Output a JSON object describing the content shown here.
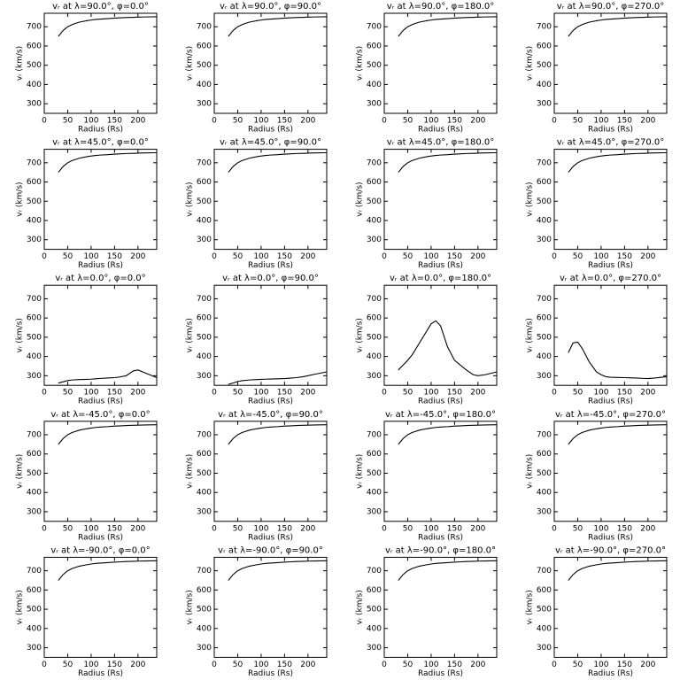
{
  "chart_data": [
    {
      "type": "line",
      "title": "vᵣ at λ=90.0°, φ=0.0°",
      "xlabel": "Radius (Rs)",
      "ylabel": "vᵣ (km/s)",
      "color": "#000000",
      "x": [
        30,
        40,
        50,
        60,
        75,
        90,
        100,
        110,
        120,
        135,
        150,
        160,
        175,
        190,
        200,
        215,
        240
      ],
      "values": [
        650,
        680,
        700,
        712,
        724,
        731,
        735,
        738,
        740,
        742,
        745,
        746,
        748,
        749,
        750,
        751,
        752
      ],
      "xlim": [
        0,
        240
      ],
      "ylim": [
        250,
        770
      ],
      "xticks": [
        0,
        50,
        100,
        150,
        200
      ],
      "yticks": [
        300,
        400,
        500,
        600,
        700
      ]
    },
    {
      "type": "line",
      "title": "vᵣ at λ=90.0°, φ=90.0°",
      "xlabel": "Radius (Rs)",
      "ylabel": "vᵣ (km/s)",
      "color": "#000000",
      "x": [
        30,
        40,
        50,
        60,
        75,
        90,
        100,
        110,
        120,
        135,
        150,
        160,
        175,
        190,
        200,
        215,
        240
      ],
      "values": [
        650,
        680,
        700,
        712,
        724,
        731,
        735,
        738,
        740,
        742,
        745,
        746,
        748,
        749,
        750,
        751,
        752
      ],
      "xlim": [
        0,
        240
      ],
      "ylim": [
        250,
        770
      ],
      "xticks": [
        0,
        50,
        100,
        150,
        200
      ],
      "yticks": [
        300,
        400,
        500,
        600,
        700
      ]
    },
    {
      "type": "line",
      "title": "vᵣ at λ=90.0°, φ=180.0°",
      "xlabel": "Radius (Rs)",
      "ylabel": "vᵣ (km/s)",
      "color": "#000000",
      "x": [
        30,
        40,
        50,
        60,
        75,
        90,
        100,
        110,
        120,
        135,
        150,
        160,
        175,
        190,
        200,
        215,
        240
      ],
      "values": [
        650,
        680,
        700,
        712,
        724,
        731,
        735,
        738,
        740,
        742,
        745,
        746,
        748,
        749,
        750,
        751,
        752
      ],
      "xlim": [
        0,
        240
      ],
      "ylim": [
        250,
        770
      ],
      "xticks": [
        0,
        50,
        100,
        150,
        200
      ],
      "yticks": [
        300,
        400,
        500,
        600,
        700
      ]
    },
    {
      "type": "line",
      "title": "vᵣ at λ=90.0°, φ=270.0°",
      "xlabel": "Radius (Rs)",
      "ylabel": "vᵣ (km/s)",
      "color": "#000000",
      "x": [
        30,
        40,
        50,
        60,
        75,
        90,
        100,
        110,
        120,
        135,
        150,
        160,
        175,
        190,
        200,
        215,
        240
      ],
      "values": [
        650,
        680,
        700,
        712,
        724,
        731,
        735,
        738,
        740,
        742,
        745,
        746,
        748,
        749,
        750,
        751,
        752
      ],
      "xlim": [
        0,
        240
      ],
      "ylim": [
        250,
        770
      ],
      "xticks": [
        0,
        50,
        100,
        150,
        200
      ],
      "yticks": [
        300,
        400,
        500,
        600,
        700
      ]
    },
    {
      "type": "line",
      "title": "vᵣ at λ=45.0°, φ=0.0°",
      "xlabel": "Radius (Rs)",
      "ylabel": "vᵣ (km/s)",
      "color": "#000000",
      "x": [
        30,
        40,
        50,
        60,
        75,
        90,
        100,
        110,
        120,
        135,
        150,
        160,
        175,
        190,
        200,
        215,
        240
      ],
      "values": [
        650,
        680,
        700,
        712,
        724,
        731,
        735,
        738,
        740,
        742,
        745,
        746,
        748,
        749,
        750,
        751,
        752
      ],
      "xlim": [
        0,
        240
      ],
      "ylim": [
        250,
        770
      ],
      "xticks": [
        0,
        50,
        100,
        150,
        200
      ],
      "yticks": [
        300,
        400,
        500,
        600,
        700
      ]
    },
    {
      "type": "line",
      "title": "vᵣ at λ=45.0°, φ=90.0°",
      "xlabel": "Radius (Rs)",
      "ylabel": "vᵣ (km/s)",
      "color": "#000000",
      "x": [
        30,
        40,
        50,
        60,
        75,
        90,
        100,
        110,
        120,
        135,
        150,
        160,
        175,
        190,
        200,
        215,
        240
      ],
      "values": [
        650,
        680,
        700,
        712,
        724,
        731,
        735,
        738,
        740,
        742,
        745,
        746,
        748,
        749,
        750,
        751,
        752
      ],
      "xlim": [
        0,
        240
      ],
      "ylim": [
        250,
        770
      ],
      "xticks": [
        0,
        50,
        100,
        150,
        200
      ],
      "yticks": [
        300,
        400,
        500,
        600,
        700
      ]
    },
    {
      "type": "line",
      "title": "vᵣ at λ=45.0°, φ=180.0°",
      "xlabel": "Radius (Rs)",
      "ylabel": "vᵣ (km/s)",
      "color": "#000000",
      "x": [
        30,
        40,
        50,
        60,
        75,
        90,
        100,
        110,
        120,
        135,
        150,
        160,
        175,
        190,
        200,
        215,
        240
      ],
      "values": [
        650,
        680,
        700,
        712,
        724,
        731,
        735,
        738,
        740,
        742,
        745,
        746,
        748,
        749,
        750,
        751,
        752
      ],
      "xlim": [
        0,
        240
      ],
      "ylim": [
        250,
        770
      ],
      "xticks": [
        0,
        50,
        100,
        150,
        200
      ],
      "yticks": [
        300,
        400,
        500,
        600,
        700
      ]
    },
    {
      "type": "line",
      "title": "vᵣ at λ=45.0°, φ=270.0°",
      "xlabel": "Radius (Rs)",
      "ylabel": "vᵣ (km/s)",
      "color": "#000000",
      "x": [
        30,
        40,
        50,
        60,
        75,
        90,
        100,
        110,
        120,
        135,
        150,
        160,
        175,
        190,
        200,
        215,
        240
      ],
      "values": [
        650,
        680,
        700,
        712,
        724,
        731,
        735,
        738,
        740,
        742,
        745,
        746,
        748,
        749,
        750,
        751,
        752
      ],
      "xlim": [
        0,
        240
      ],
      "ylim": [
        250,
        770
      ],
      "xticks": [
        0,
        50,
        100,
        150,
        200
      ],
      "yticks": [
        300,
        400,
        500,
        600,
        700
      ]
    },
    {
      "type": "line",
      "title": "vᵣ at λ=0.0°, φ=0.0°",
      "xlabel": "Radius (Rs)",
      "ylabel": "vᵣ (km/s)",
      "color": "#000000",
      "x": [
        30,
        40,
        50,
        60,
        75,
        90,
        100,
        110,
        120,
        135,
        150,
        160,
        175,
        190,
        200,
        215,
        240
      ],
      "values": [
        262,
        268,
        275,
        278,
        280,
        281,
        282,
        284,
        286,
        288,
        290,
        293,
        300,
        325,
        330,
        315,
        290
      ],
      "xlim": [
        0,
        240
      ],
      "ylim": [
        250,
        770
      ],
      "xticks": [
        0,
        50,
        100,
        150,
        200
      ],
      "yticks": [
        300,
        400,
        500,
        600,
        700
      ]
    },
    {
      "type": "line",
      "title": "vᵣ at λ=0.0°, φ=90.0°",
      "xlabel": "Radius (Rs)",
      "ylabel": "vᵣ (km/s)",
      "color": "#000000",
      "x": [
        30,
        40,
        50,
        60,
        75,
        90,
        100,
        110,
        120,
        135,
        150,
        160,
        175,
        190,
        200,
        215,
        240
      ],
      "values": [
        255,
        262,
        270,
        274,
        278,
        280,
        281,
        282,
        283,
        284,
        285,
        287,
        290,
        295,
        300,
        308,
        320
      ],
      "xlim": [
        0,
        240
      ],
      "ylim": [
        250,
        770
      ],
      "xticks": [
        0,
        50,
        100,
        150,
        200
      ],
      "yticks": [
        300,
        400,
        500,
        600,
        700
      ]
    },
    {
      "type": "line",
      "title": "vᵣ at λ=0.0°, φ=180.0°",
      "xlabel": "Radius (Rs)",
      "ylabel": "vᵣ (km/s)",
      "color": "#000000",
      "x": [
        30,
        40,
        50,
        60,
        75,
        90,
        100,
        110,
        120,
        135,
        150,
        160,
        175,
        190,
        200,
        215,
        240
      ],
      "values": [
        330,
        355,
        380,
        410,
        470,
        530,
        570,
        585,
        560,
        450,
        380,
        360,
        330,
        305,
        300,
        305,
        320
      ],
      "xlim": [
        0,
        240
      ],
      "ylim": [
        250,
        770
      ],
      "xticks": [
        0,
        50,
        100,
        150,
        200
      ],
      "yticks": [
        300,
        400,
        500,
        600,
        700
      ]
    },
    {
      "type": "line",
      "title": "vᵣ at λ=0.0°, φ=270.0°",
      "xlabel": "Radius (Rs)",
      "ylabel": "vᵣ (km/s)",
      "color": "#000000",
      "x": [
        30,
        40,
        50,
        60,
        75,
        90,
        100,
        110,
        120,
        135,
        150,
        160,
        175,
        190,
        200,
        215,
        240
      ],
      "values": [
        420,
        470,
        475,
        440,
        370,
        320,
        305,
        295,
        292,
        291,
        290,
        289,
        288,
        286,
        285,
        288,
        295
      ],
      "xlim": [
        0,
        240
      ],
      "ylim": [
        250,
        770
      ],
      "xticks": [
        0,
        50,
        100,
        150,
        200
      ],
      "yticks": [
        300,
        400,
        500,
        600,
        700
      ]
    },
    {
      "type": "line",
      "title": "vᵣ at λ=-45.0°, φ=0.0°",
      "xlabel": "Radius (Rs)",
      "ylabel": "vᵣ (km/s)",
      "color": "#000000",
      "x": [
        30,
        40,
        50,
        60,
        75,
        90,
        100,
        110,
        120,
        135,
        150,
        160,
        175,
        190,
        200,
        215,
        240
      ],
      "values": [
        650,
        680,
        700,
        712,
        724,
        731,
        735,
        738,
        740,
        742,
        745,
        746,
        748,
        749,
        750,
        751,
        752
      ],
      "xlim": [
        0,
        240
      ],
      "ylim": [
        250,
        770
      ],
      "xticks": [
        0,
        50,
        100,
        150,
        200
      ],
      "yticks": [
        300,
        400,
        500,
        600,
        700
      ]
    },
    {
      "type": "line",
      "title": "vᵣ at λ=-45.0°, φ=90.0°",
      "xlabel": "Radius (Rs)",
      "ylabel": "vᵣ (km/s)",
      "color": "#000000",
      "x": [
        30,
        40,
        50,
        60,
        75,
        90,
        100,
        110,
        120,
        135,
        150,
        160,
        175,
        190,
        200,
        215,
        240
      ],
      "values": [
        650,
        680,
        700,
        712,
        724,
        731,
        735,
        738,
        740,
        742,
        745,
        746,
        748,
        749,
        750,
        751,
        752
      ],
      "xlim": [
        0,
        240
      ],
      "ylim": [
        250,
        770
      ],
      "xticks": [
        0,
        50,
        100,
        150,
        200
      ],
      "yticks": [
        300,
        400,
        500,
        600,
        700
      ]
    },
    {
      "type": "line",
      "title": "vᵣ at λ=-45.0°, φ=180.0°",
      "xlabel": "Radius (Rs)",
      "ylabel": "vᵣ (km/s)",
      "color": "#000000",
      "x": [
        30,
        40,
        50,
        60,
        75,
        90,
        100,
        110,
        120,
        135,
        150,
        160,
        175,
        190,
        200,
        215,
        240
      ],
      "values": [
        650,
        680,
        700,
        712,
        724,
        731,
        735,
        738,
        740,
        742,
        745,
        746,
        748,
        749,
        750,
        751,
        752
      ],
      "xlim": [
        0,
        240
      ],
      "ylim": [
        250,
        770
      ],
      "xticks": [
        0,
        50,
        100,
        150,
        200
      ],
      "yticks": [
        300,
        400,
        500,
        600,
        700
      ]
    },
    {
      "type": "line",
      "title": "vᵣ at λ=-45.0°, φ=270.0°",
      "xlabel": "Radius (Rs)",
      "ylabel": "vᵣ (km/s)",
      "color": "#000000",
      "x": [
        30,
        40,
        50,
        60,
        75,
        90,
        100,
        110,
        120,
        135,
        150,
        160,
        175,
        190,
        200,
        215,
        240
      ],
      "values": [
        650,
        680,
        700,
        712,
        724,
        731,
        735,
        738,
        740,
        742,
        745,
        746,
        748,
        749,
        750,
        751,
        752
      ],
      "xlim": [
        0,
        240
      ],
      "ylim": [
        250,
        770
      ],
      "xticks": [
        0,
        50,
        100,
        150,
        200
      ],
      "yticks": [
        300,
        400,
        500,
        600,
        700
      ]
    },
    {
      "type": "line",
      "title": "vᵣ at λ=-90.0°, φ=0.0°",
      "xlabel": "Radius (Rs)",
      "ylabel": "vᵣ (km/s)",
      "color": "#000000",
      "x": [
        30,
        40,
        50,
        60,
        75,
        90,
        100,
        110,
        120,
        135,
        150,
        160,
        175,
        190,
        200,
        215,
        240
      ],
      "values": [
        650,
        680,
        700,
        712,
        724,
        731,
        735,
        738,
        740,
        742,
        745,
        746,
        748,
        749,
        750,
        751,
        752
      ],
      "xlim": [
        0,
        240
      ],
      "ylim": [
        250,
        770
      ],
      "xticks": [
        0,
        50,
        100,
        150,
        200
      ],
      "yticks": [
        300,
        400,
        500,
        600,
        700
      ]
    },
    {
      "type": "line",
      "title": "vᵣ at λ=-90.0°, φ=90.0°",
      "xlabel": "Radius (Rs)",
      "ylabel": "vᵣ (km/s)",
      "color": "#000000",
      "x": [
        30,
        40,
        50,
        60,
        75,
        90,
        100,
        110,
        120,
        135,
        150,
        160,
        175,
        190,
        200,
        215,
        240
      ],
      "values": [
        650,
        680,
        700,
        712,
        724,
        731,
        735,
        738,
        740,
        742,
        745,
        746,
        748,
        749,
        750,
        751,
        752
      ],
      "xlim": [
        0,
        240
      ],
      "ylim": [
        250,
        770
      ],
      "xticks": [
        0,
        50,
        100,
        150,
        200
      ],
      "yticks": [
        300,
        400,
        500,
        600,
        700
      ]
    },
    {
      "type": "line",
      "title": "vᵣ at λ=-90.0°, φ=180.0°",
      "xlabel": "Radius (Rs)",
      "ylabel": "vᵣ (km/s)",
      "color": "#000000",
      "x": [
        30,
        40,
        50,
        60,
        75,
        90,
        100,
        110,
        120,
        135,
        150,
        160,
        175,
        190,
        200,
        215,
        240
      ],
      "values": [
        650,
        680,
        700,
        712,
        724,
        731,
        735,
        738,
        740,
        742,
        745,
        746,
        748,
        749,
        750,
        751,
        752
      ],
      "xlim": [
        0,
        240
      ],
      "ylim": [
        250,
        770
      ],
      "xticks": [
        0,
        50,
        100,
        150,
        200
      ],
      "yticks": [
        300,
        400,
        500,
        600,
        700
      ]
    },
    {
      "type": "line",
      "title": "vᵣ at λ=-90.0°, φ=270.0°",
      "xlabel": "Radius (Rs)",
      "ylabel": "vᵣ (km/s)",
      "color": "#000000",
      "x": [
        30,
        40,
        50,
        60,
        75,
        90,
        100,
        110,
        120,
        135,
        150,
        160,
        175,
        190,
        200,
        215,
        240
      ],
      "values": [
        650,
        680,
        700,
        712,
        724,
        731,
        735,
        738,
        740,
        742,
        745,
        746,
        748,
        749,
        750,
        751,
        752
      ],
      "xlim": [
        0,
        240
      ],
      "ylim": [
        250,
        770
      ],
      "xticks": [
        0,
        50,
        100,
        150,
        200
      ],
      "yticks": [
        300,
        400,
        500,
        600,
        700
      ]
    }
  ]
}
